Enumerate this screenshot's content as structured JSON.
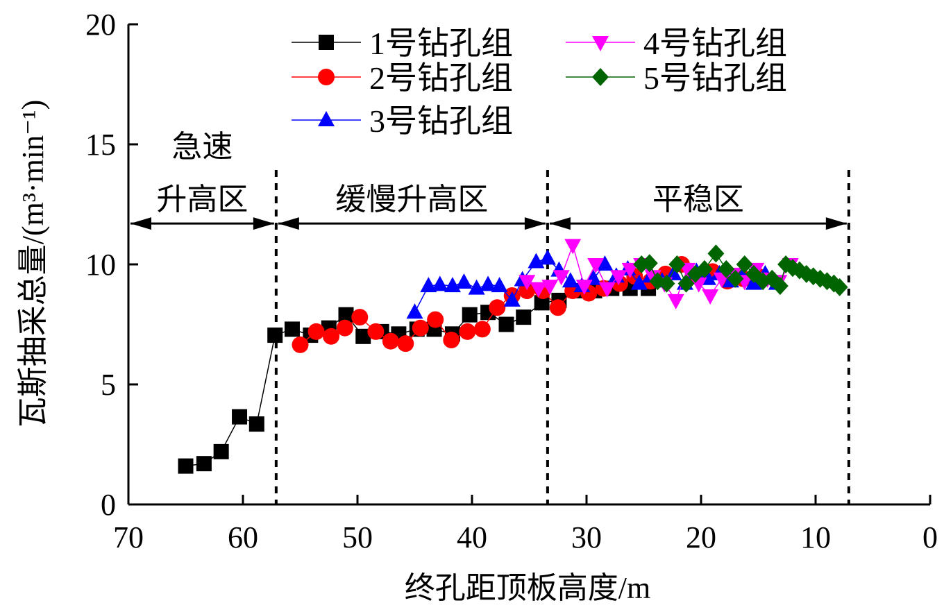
{
  "chart_data": {
    "type": "line",
    "xlabel": "终孔距顶板高度/m",
    "ylabel": "瓦斯抽采总量/(m³·min⁻¹)",
    "xlim": [
      70,
      0
    ],
    "ylim": [
      0,
      20
    ],
    "x_reversed": true,
    "xticks": [
      70,
      60,
      50,
      40,
      30,
      20,
      10,
      0
    ],
    "yticks": [
      0,
      5,
      10,
      15,
      20
    ],
    "grid": false,
    "legend_position": "top",
    "regions": [
      {
        "label_lines": [
          "急速",
          "升高区"
        ],
        "from": 70,
        "to": 57.1
      },
      {
        "label_lines": [
          "缓慢升高区"
        ],
        "from": 57.1,
        "to": 33.4
      },
      {
        "label_lines": [
          "平稳区"
        ],
        "from": 33.4,
        "to": 7.1
      }
    ],
    "region_arrow_y": 11.7,
    "divider_x": [
      57.1,
      33.4,
      7.1
    ],
    "series": [
      {
        "name": "1号钻孔组",
        "color": "#000000",
        "marker": "square",
        "x": [
          65.0,
          63.4,
          61.9,
          60.3,
          58.8,
          57.2,
          55.7,
          54.1,
          52.5,
          51.0,
          49.5,
          47.9,
          46.4,
          44.8,
          43.3,
          41.7,
          40.2,
          38.6,
          37.0,
          35.5,
          33.9,
          32.4,
          30.9,
          29.3,
          27.8,
          26.2,
          24.6
        ],
        "y": [
          1.6,
          1.7,
          2.2,
          3.65,
          3.35,
          7.05,
          7.3,
          7.05,
          7.35,
          7.9,
          7.0,
          7.2,
          7.1,
          7.3,
          7.3,
          7.1,
          7.9,
          8.0,
          7.5,
          7.8,
          8.4,
          8.5,
          8.9,
          8.9,
          9.0,
          9.0,
          9.0
        ]
      },
      {
        "name": "2号钻孔组",
        "color": "#ff0000",
        "marker": "circle",
        "x": [
          55.0,
          53.6,
          52.3,
          51.1,
          49.8,
          48.4,
          47.1,
          45.8,
          44.5,
          43.2,
          41.8,
          40.4,
          39.1,
          37.8,
          36.5,
          35.2,
          33.8,
          32.5,
          31.2,
          29.8,
          28.5,
          27.1,
          25.8,
          24.4,
          23.1,
          21.7,
          20.4,
          19.0,
          17.7,
          16.3,
          15.0
        ],
        "y": [
          6.65,
          7.2,
          7.0,
          7.35,
          7.8,
          7.2,
          6.8,
          6.7,
          7.35,
          7.7,
          6.85,
          7.2,
          7.3,
          8.2,
          8.7,
          8.9,
          8.9,
          8.2,
          8.9,
          8.8,
          9.0,
          9.2,
          9.5,
          9.3,
          9.6,
          10.0,
          9.5,
          9.7,
          9.3,
          9.4,
          9.5
        ]
      },
      {
        "name": "3号钻孔组",
        "color": "#0000ff",
        "marker": "triangle-up",
        "x": [
          45.0,
          43.8,
          42.8,
          41.7,
          40.7,
          39.6,
          38.6,
          37.6,
          36.5,
          35.6,
          34.4,
          33.4,
          32.4,
          31.4,
          30.4,
          29.4,
          28.4,
          27.4,
          26.4,
          25.4,
          24.4,
          23.4,
          22.4,
          21.4,
          20.4,
          19.4,
          18.4,
          17.4,
          16.4,
          15.4,
          14.4,
          13.4
        ],
        "y": [
          8.0,
          9.1,
          9.15,
          9.1,
          9.25,
          9.0,
          9.15,
          9.1,
          8.5,
          9.35,
          10.1,
          10.25,
          9.75,
          9.3,
          9.1,
          9.4,
          10.0,
          9.5,
          9.8,
          9.2,
          9.5,
          9.3,
          9.6,
          9.2,
          9.7,
          9.4,
          9.6,
          9.3,
          9.5,
          9.2,
          9.6,
          9.2
        ]
      },
      {
        "name": "4号钻孔组",
        "color": "#ff00ff",
        "marker": "triangle-down",
        "x": [
          35.2,
          34.2,
          33.2,
          32.2,
          31.2,
          30.2,
          29.2,
          28.2,
          27.2,
          26.2,
          25.2,
          24.2,
          23.2,
          22.2,
          21.2,
          20.2,
          19.2,
          18.2,
          17.2,
          16.2,
          15.2,
          14.2,
          13.2,
          12.2
        ],
        "y": [
          9.3,
          9.0,
          9.1,
          9.5,
          10.8,
          9.1,
          10.0,
          9.0,
          9.5,
          9.8,
          10.0,
          9.5,
          9.2,
          8.5,
          9.8,
          9.2,
          8.7,
          9.4,
          9.6,
          9.3,
          9.8,
          9.4,
          9.3,
          10.0
        ]
      },
      {
        "name": "5号钻孔组",
        "color": "#006400",
        "marker": "diamond",
        "x": [
          25.2,
          24.5,
          23.8,
          23.0,
          22.1,
          21.3,
          20.5,
          19.7,
          18.7,
          17.8,
          17.0,
          16.2,
          15.4,
          14.6,
          13.8,
          13.1,
          12.6,
          12.0,
          11.4,
          10.8,
          10.2,
          9.6,
          9.0,
          8.4,
          7.9
        ],
        "y": [
          10.0,
          10.05,
          9.3,
          9.2,
          10.0,
          9.2,
          9.6,
          9.8,
          10.45,
          9.8,
          9.4,
          10.0,
          9.6,
          9.3,
          9.4,
          9.1,
          10.0,
          9.85,
          9.75,
          9.6,
          9.5,
          9.4,
          9.3,
          9.2,
          9.05
        ]
      }
    ]
  }
}
